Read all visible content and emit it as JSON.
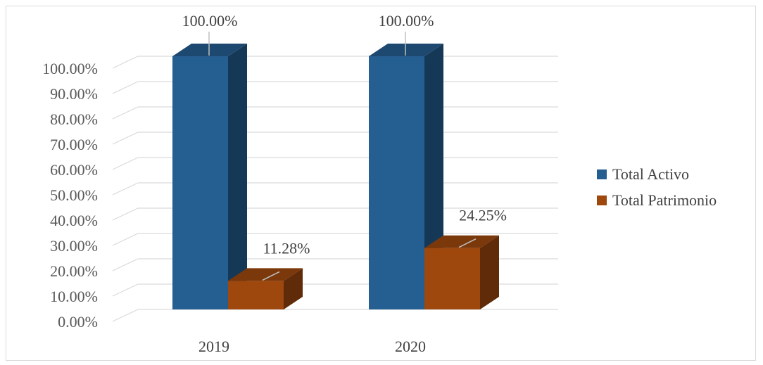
{
  "chart_data": {
    "type": "bar",
    "categories": [
      "2019",
      "2020"
    ],
    "series": [
      {
        "name": "Total Activo",
        "values": [
          100.0,
          100.0
        ],
        "color": "#255E91"
      },
      {
        "name": "Total Patrimonio",
        "values": [
          11.28,
          24.25
        ],
        "color": "#9E480E"
      }
    ],
    "data_labels": [
      [
        "100.00%",
        "100.00%"
      ],
      [
        "11.28%",
        "24.25%"
      ]
    ],
    "y_ticks": [
      "0.00%",
      "10.00%",
      "20.00%",
      "30.00%",
      "40.00%",
      "50.00%",
      "60.00%",
      "70.00%",
      "80.00%",
      "90.00%",
      "100.00%"
    ],
    "ylim": [
      0,
      100
    ],
    "grid": true,
    "style": "3d-clustered-column",
    "legend_position": "right",
    "title": "",
    "xlabel": "",
    "ylabel": ""
  }
}
